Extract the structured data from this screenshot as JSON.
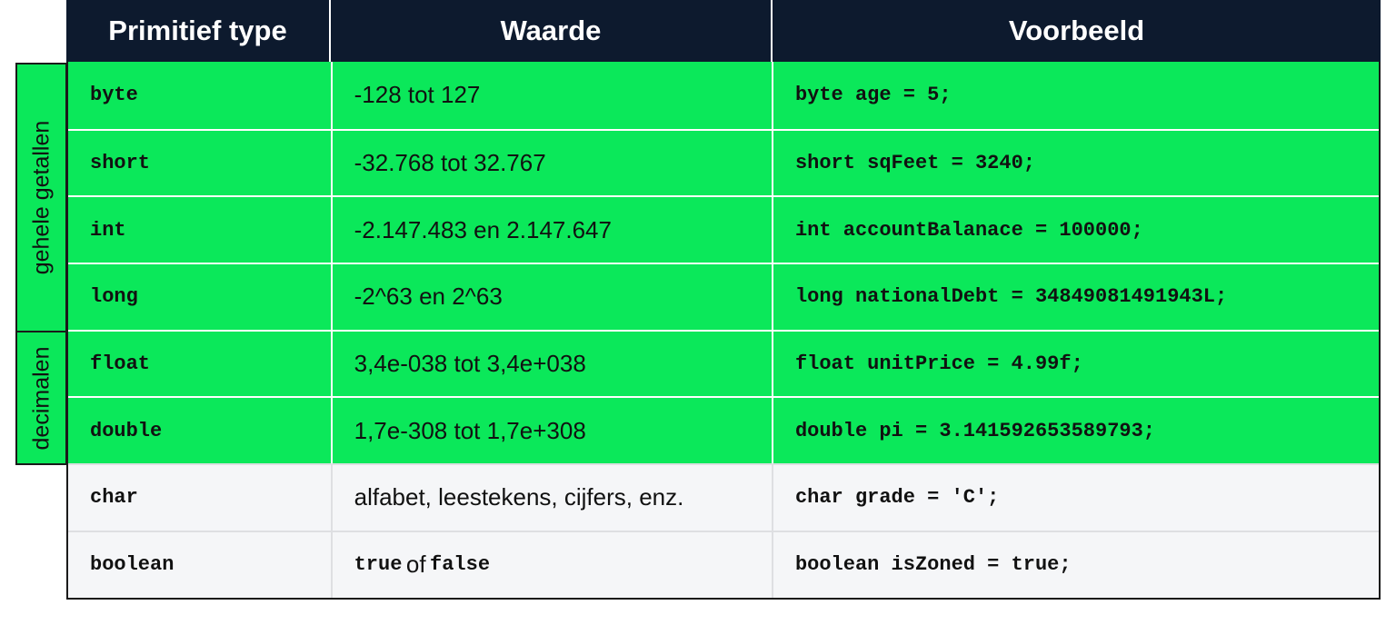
{
  "colors": {
    "header": "#0d1a2e",
    "highlight": "#0be85a",
    "plain": "#f5f6f8"
  },
  "headers": [
    "Primitief type",
    "Waarde",
    "Voorbeeld"
  ],
  "groups": [
    {
      "label": "gehele getallen"
    },
    {
      "label": "decimalen"
    }
  ],
  "rows": [
    {
      "type": "byte",
      "value": "-128 tot 127",
      "example": "byte age = 5;"
    },
    {
      "type": "short",
      "value": "-32.768 tot 32.767",
      "example": "short sqFeet = 3240;"
    },
    {
      "type": "int",
      "value": "-2.147.483 en 2.147.647",
      "example": "int accountBalanace = 100000;"
    },
    {
      "type": "long",
      "value": "-2^63 en 2^63",
      "example": "long nationalDebt = 34849081491943L;"
    },
    {
      "type": "float",
      "value": "3,4e-038 tot 3,4e+038",
      "example": "float unitPrice = 4.99f;"
    },
    {
      "type": "double",
      "value": "1,7e-308 tot 1,7e+308",
      "example": "double pi = 3.141592653589793;"
    },
    {
      "type": "char",
      "value": "alfabet, leestekens, cijfers, enz.",
      "example": "char grade = 'C';"
    },
    {
      "type": "boolean",
      "value_parts": [
        "true",
        "of",
        "false"
      ],
      "example": "boolean isZoned = true;"
    }
  ]
}
